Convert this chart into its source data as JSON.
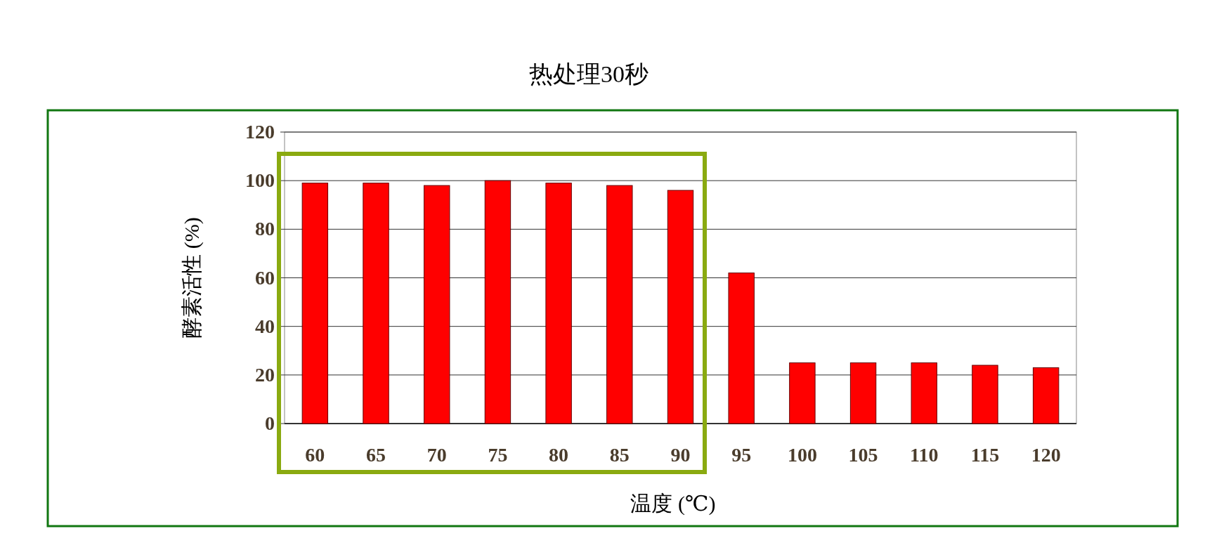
{
  "chart_data": {
    "type": "bar",
    "title": "热处理30秒",
    "xlabel": "温度 (℃)",
    "ylabel": "酵素活性 (%)",
    "categories": [
      "60",
      "65",
      "70",
      "75",
      "80",
      "85",
      "90",
      "95",
      "100",
      "105",
      "110",
      "115",
      "120"
    ],
    "values": [
      99,
      99,
      98,
      100,
      99,
      98,
      96,
      62,
      25,
      25,
      25,
      24,
      23
    ],
    "color": "#ff0000",
    "ylim": [
      0,
      120
    ],
    "yticks": [
      0,
      20,
      40,
      60,
      80,
      100,
      120
    ],
    "grid": "y"
  }
}
